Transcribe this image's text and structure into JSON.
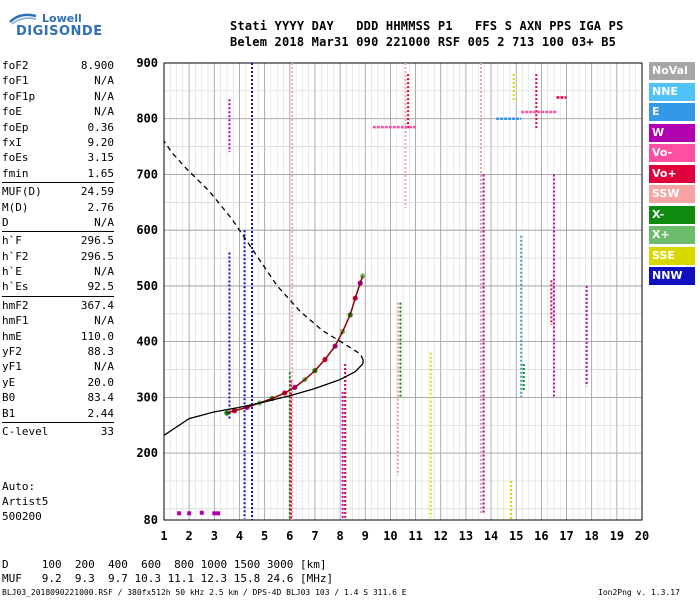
{
  "logo": {
    "line1": "Lowell",
    "line2": "DIGISONDE"
  },
  "header": {
    "row1": "Stati YYYY DAY   DDD HHMMSS P1   FFS S AXN PPS IGA PS",
    "row2": "Belem 2018 Mar31 090 221000 RSF 005 2 713 100 03+ B5"
  },
  "params": [
    {
      "k": "foF2",
      "v": "8.900"
    },
    {
      "k": "foF1",
      "v": "N/A"
    },
    {
      "k": "foF1p",
      "v": "N/A"
    },
    {
      "k": "foE",
      "v": "N/A"
    },
    {
      "k": "foEp",
      "v": "0.36"
    },
    {
      "k": "fxI",
      "v": "9.20"
    },
    {
      "k": "foEs",
      "v": "3.15"
    },
    {
      "k": "fmin",
      "v": "1.65"
    },
    {
      "k": "MUF(D)",
      "v": "24.59"
    },
    {
      "k": "M(D)",
      "v": "2.76"
    },
    {
      "k": "D",
      "v": "N/A"
    },
    {
      "k": "h`F",
      "v": "296.5"
    },
    {
      "k": "h`F2",
      "v": "296.5"
    },
    {
      "k": "h`E",
      "v": "N/A"
    },
    {
      "k": "h`Es",
      "v": "92.5"
    },
    {
      "k": "hmF2",
      "v": "367.4"
    },
    {
      "k": "hmF1",
      "v": "N/A"
    },
    {
      "k": "hmE",
      "v": "110.0"
    },
    {
      "k": "yF2",
      "v": "88.3"
    },
    {
      "k": "yF1",
      "v": "N/A"
    },
    {
      "k": "yE",
      "v": "20.0"
    },
    {
      "k": "B0",
      "v": "83.4"
    },
    {
      "k": "B1",
      "v": "2.44"
    },
    {
      "k": "C-level",
      "v": "33"
    }
  ],
  "auto_text": "Auto:\nArtist5\n500200",
  "legend": [
    {
      "label": "NoVal",
      "color": "#a6a6a6"
    },
    {
      "label": "NNE",
      "color": "#4fc3f7"
    },
    {
      "label": "E",
      "color": "#3399e6"
    },
    {
      "label": "W",
      "color": "#b000b0"
    },
    {
      "label": "Vo-",
      "color": "#ff4fa0"
    },
    {
      "label": "Vo+",
      "color": "#e0003c"
    },
    {
      "label": "SSW",
      "color": "#f5a3a3"
    },
    {
      "label": "X-",
      "color": "#0f8a0f"
    },
    {
      "label": "X+",
      "color": "#6bbd6b"
    },
    {
      "label": "SSE",
      "color": "#d8d800"
    },
    {
      "label": "NNW",
      "color": "#1010c0"
    }
  ],
  "footer": {
    "d_row": "D     100  200  400  600  800 1000 1500 3000 [km]",
    "muf_row": "MUF   9.2  9.3  9.7 10.3 11.1 12.3 15.8 24.6 [MHz]",
    "file_line": "BLJ03_2018090221000.RSF / 380fx512h 50 kHz 2.5 km / DPS-4D BLJ03 103 / 1.4 S 311.6 E",
    "version": "Ion2Png v. 1.3.17"
  },
  "chart_data": {
    "type": "scatter",
    "title": "",
    "xlabel": "",
    "ylabel": "",
    "xlim": [
      1,
      20
    ],
    "ylim": [
      80,
      900
    ],
    "x_ticks": [
      1,
      2,
      3,
      4,
      5,
      6,
      7,
      8,
      9,
      10,
      11,
      12,
      13,
      14,
      15,
      16,
      17,
      18,
      19,
      20
    ],
    "y_ticks": [
      80,
      200,
      300,
      400,
      500,
      600,
      700,
      800,
      900
    ],
    "grid": true,
    "trace_o": [
      [
        3.5,
        272
      ],
      [
        3.8,
        276
      ],
      [
        4.3,
        282
      ],
      [
        4.8,
        290
      ],
      [
        5.3,
        298
      ],
      [
        5.8,
        308
      ],
      [
        6.2,
        318
      ],
      [
        6.6,
        332
      ],
      [
        7.0,
        348
      ],
      [
        7.4,
        368
      ],
      [
        7.8,
        392
      ],
      [
        8.1,
        418
      ],
      [
        8.4,
        448
      ],
      [
        8.6,
        478
      ],
      [
        8.8,
        505
      ],
      [
        8.9,
        518
      ]
    ],
    "profile_solid": [
      [
        1.0,
        232
      ],
      [
        2.0,
        262
      ],
      [
        3.0,
        274
      ],
      [
        4.0,
        282
      ],
      [
        5.0,
        292
      ],
      [
        6.0,
        303
      ],
      [
        7.0,
        316
      ],
      [
        8.0,
        332
      ],
      [
        8.6,
        346
      ],
      [
        8.9,
        360
      ],
      [
        8.92,
        367
      ],
      [
        8.8,
        378
      ],
      [
        8.2,
        395
      ],
      [
        7.3,
        420
      ],
      [
        6.4,
        455
      ],
      [
        5.5,
        500
      ],
      [
        4.6,
        560
      ],
      [
        3.7,
        620
      ],
      [
        2.8,
        670
      ],
      [
        1.9,
        710
      ],
      [
        1.3,
        740
      ],
      [
        1.0,
        760
      ]
    ],
    "profile_dashed_from": 367,
    "es_layer": [
      [
        1.6,
        92
      ],
      [
        2.0,
        92
      ],
      [
        2.5,
        93
      ],
      [
        3.0,
        92
      ],
      [
        3.15,
        92
      ]
    ],
    "vertical_streaks": [
      {
        "x": 3.6,
        "y1": 740,
        "y2": 835,
        "color": "#b000b0"
      },
      {
        "x": 3.6,
        "y1": 260,
        "y2": 560,
        "color": "#1010c0"
      },
      {
        "x": 4.5,
        "y1": 80,
        "y2": 900,
        "color": "#1010c0"
      },
      {
        "x": 4.2,
        "y1": 82,
        "y2": 600,
        "color": "#1010c0"
      },
      {
        "x": 6.0,
        "y1": 80,
        "y2": 345,
        "color": "#0f8a0f"
      },
      {
        "x": 6.05,
        "y1": 80,
        "y2": 330,
        "color": "#e0003c"
      },
      {
        "x": 6.1,
        "y1": 80,
        "y2": 900,
        "color": "#f5a3a3"
      },
      {
        "x": 8.1,
        "y1": 80,
        "y2": 310,
        "color": "#b000b0"
      },
      {
        "x": 8.2,
        "y1": 84,
        "y2": 360,
        "color": "#e0003c"
      },
      {
        "x": 10.3,
        "y1": 160,
        "y2": 470,
        "color": "#f5a3a3"
      },
      {
        "x": 10.4,
        "y1": 300,
        "y2": 470,
        "color": "#0f8a0f"
      },
      {
        "x": 10.6,
        "y1": 640,
        "y2": 900,
        "color": "#f5a3a3"
      },
      {
        "x": 10.7,
        "y1": 780,
        "y2": 880,
        "color": "#e0003c"
      },
      {
        "x": 11.6,
        "y1": 84,
        "y2": 380,
        "color": "#d8d800"
      },
      {
        "x": 13.6,
        "y1": 90,
        "y2": 900,
        "color": "#f5a3a3"
      },
      {
        "x": 13.7,
        "y1": 90,
        "y2": 700,
        "color": "#b000b0"
      },
      {
        "x": 14.8,
        "y1": 80,
        "y2": 150,
        "color": "#d8d800"
      },
      {
        "x": 14.9,
        "y1": 830,
        "y2": 880,
        "color": "#d8d800"
      },
      {
        "x": 15.2,
        "y1": 300,
        "y2": 590,
        "color": "#3399e6"
      },
      {
        "x": 15.3,
        "y1": 310,
        "y2": 360,
        "color": "#0f8a0f"
      },
      {
        "x": 16.4,
        "y1": 430,
        "y2": 510,
        "color": "#e0003c"
      },
      {
        "x": 16.5,
        "y1": 300,
        "y2": 700,
        "color": "#b000b0"
      },
      {
        "x": 17.8,
        "y1": 320,
        "y2": 500,
        "color": "#b000b0"
      },
      {
        "x": 15.8,
        "y1": 780,
        "y2": 880,
        "color": "#e0003c"
      }
    ],
    "horizontal_streaks": [
      {
        "x1": 9.3,
        "x2": 11.0,
        "y": 785,
        "color": "#ff4fa0"
      },
      {
        "x1": 14.2,
        "x2": 15.2,
        "y": 800,
        "color": "#3399e6"
      },
      {
        "x1": 15.2,
        "x2": 16.6,
        "y": 812,
        "color": "#ff4fa0"
      },
      {
        "x1": 16.6,
        "x2": 17.0,
        "y": 838,
        "color": "#e0003c"
      }
    ]
  }
}
